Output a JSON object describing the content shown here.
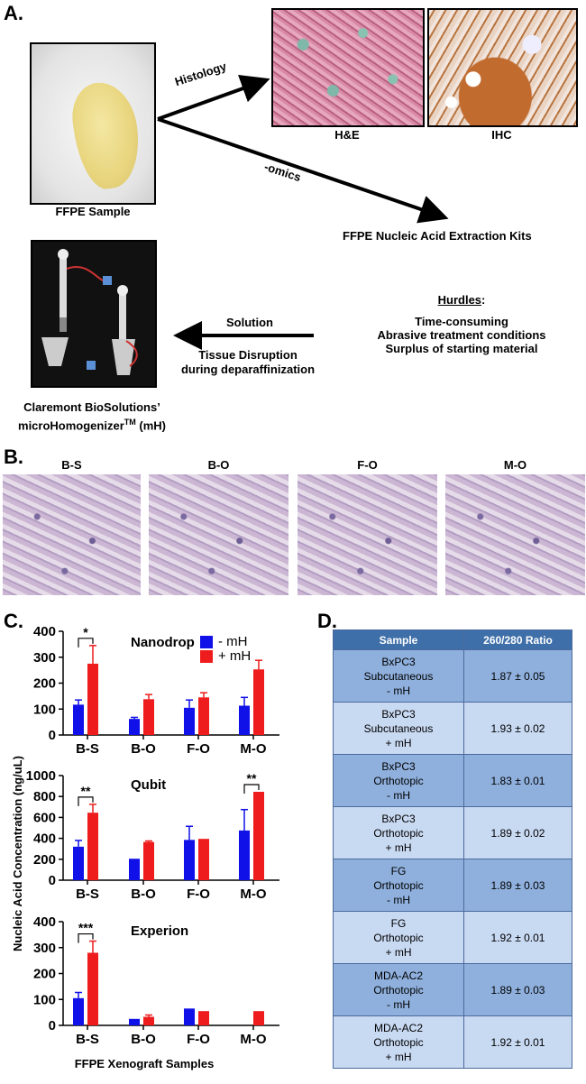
{
  "figure": {
    "panels": {
      "a": "A.",
      "b": "B.",
      "c": "C.",
      "d": "D."
    },
    "panel_a": {
      "ffpe_label": "FFPE Sample",
      "histology_label": "Histology",
      "omics_label": "-omics",
      "he_label": "H&E",
      "ihc_label": "IHC",
      "extraction_label": "FFPE Nucleic Acid Extraction Kits",
      "hurdles_title": "Hurdles",
      "hurdles_colon": ":",
      "hurdles": [
        "Time-consuming",
        "Abrasive treatment conditions",
        "Surplus of starting material"
      ],
      "solution_label": "Solution",
      "solution_lines": [
        "Tissue Disruption",
        "during deparaffinization"
      ],
      "device_line1": "Claremont BioSolutions’",
      "device_line2_pre": "microHomogenizer",
      "device_tm": "TM",
      "device_line2_post": " (mH)"
    },
    "panel_b": {
      "labels": [
        "B-S",
        "B-O",
        "F-O",
        "M-O"
      ]
    },
    "panel_c": {
      "y_axis_label": "Nucleic Acid Concentration (ng/uL)",
      "x_axis_label": "FFPE Xenograft Samples",
      "legend": [
        "- mH",
        "+ mH"
      ]
    },
    "panel_d": {
      "headers": [
        "Sample",
        "260/280 Ratio"
      ],
      "rows": [
        {
          "sample": [
            "BxPC3",
            "Subcutaneous",
            "- mH"
          ],
          "ratio": "1.87 ± 0.05"
        },
        {
          "sample": [
            "BxPC3",
            "Subcutaneous",
            "+ mH"
          ],
          "ratio": "1.93 ± 0.02"
        },
        {
          "sample": [
            "BxPC3",
            "Orthotopic",
            "- mH"
          ],
          "ratio": "1.83 ± 0.01"
        },
        {
          "sample": [
            "BxPC3",
            "Orthotopic",
            "+ mH"
          ],
          "ratio": "1.89 ± 0.02"
        },
        {
          "sample": [
            "FG",
            "Orthotopic",
            "- mH"
          ],
          "ratio": "1.89 ± 0.03"
        },
        {
          "sample": [
            "FG",
            "Orthotopic",
            "+ mH"
          ],
          "ratio": "1.92 ± 0.01"
        },
        {
          "sample": [
            "MDA-AC2",
            "Orthotopic",
            "- mH"
          ],
          "ratio": "1.89 ± 0.03"
        },
        {
          "sample": [
            "MDA-AC2",
            "Orthotopic",
            "+ mH"
          ],
          "ratio": "1.92 ± 0.01"
        }
      ]
    }
  },
  "colors": {
    "minus_mH": "#1010e8",
    "plus_mH": "#ee1c1c",
    "table_dark": "#8fb0dd",
    "table_light": "#c8d9f2",
    "table_header": "#3f6fa8"
  },
  "chart_data": [
    {
      "type": "bar",
      "title": "Nanodrop",
      "categories": [
        "B-S",
        "B-O",
        "F-O",
        "M-O"
      ],
      "series": [
        {
          "name": "- mH",
          "values": [
            117,
            62,
            105,
            113
          ],
          "errors": [
            18,
            6,
            30,
            32
          ]
        },
        {
          "name": "+ mH",
          "values": [
            275,
            138,
            145,
            253
          ],
          "errors": [
            70,
            18,
            18,
            35
          ]
        }
      ],
      "ylim": [
        0,
        400
      ],
      "yticks": [
        0,
        100,
        200,
        300,
        400
      ],
      "significance": [
        {
          "category": "B-S",
          "label": "*"
        }
      ]
    },
    {
      "type": "bar",
      "title": "Qubit",
      "categories": [
        "B-S",
        "B-O",
        "F-O",
        "M-O"
      ],
      "series": [
        {
          "name": "- mH",
          "values": [
            320,
            205,
            385,
            475
          ],
          "errors": [
            60,
            0,
            130,
            200
          ]
        },
        {
          "name": "+ mH",
          "values": [
            645,
            365,
            395,
            845
          ],
          "errors": [
            80,
            10,
            0,
            0
          ]
        }
      ],
      "ylim": [
        0,
        1000
      ],
      "yticks": [
        0,
        200,
        400,
        600,
        800,
        1000
      ],
      "significance": [
        {
          "category": "B-S",
          "label": "**"
        },
        {
          "category": "M-O",
          "label": "**"
        }
      ]
    },
    {
      "type": "bar",
      "title": "Experion",
      "categories": [
        "B-S",
        "B-O",
        "F-O",
        "M-O"
      ],
      "series": [
        {
          "name": "- mH",
          "values": [
            105,
            25,
            65,
            0
          ],
          "errors": [
            22,
            0,
            0,
            0
          ]
        },
        {
          "name": "+ mH",
          "values": [
            280,
            33,
            55,
            55
          ],
          "errors": [
            45,
            7,
            0,
            0
          ]
        }
      ],
      "ylim": [
        0,
        400
      ],
      "yticks": [
        0,
        100,
        200,
        300,
        400
      ],
      "significance": [
        {
          "category": "B-S",
          "label": "***"
        }
      ]
    }
  ]
}
